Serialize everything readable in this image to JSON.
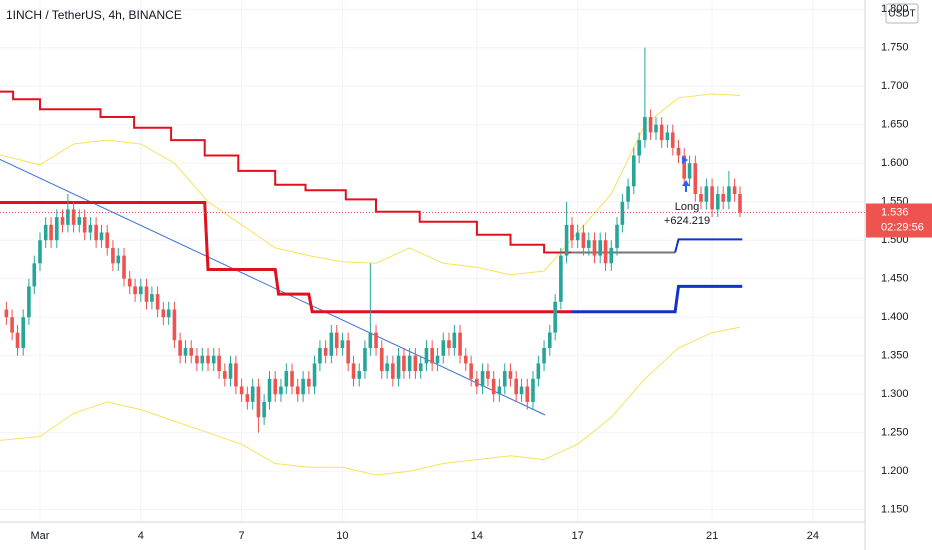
{
  "chart_data": {
    "type": "candlestick",
    "title": "1INCH / TetherUS, 4h, BINANCE",
    "currency": "USDT",
    "up_color": "#26a69a",
    "down_color": "#ef5350",
    "grid": true,
    "xlim": [
      -0.19,
      25.55
    ],
    "xticks": [
      {
        "value": 1,
        "label": "Mar"
      },
      4,
      7,
      10,
      14,
      17,
      21,
      24
    ],
    "ylim": [
      1.134,
      1.812
    ],
    "yticks": [
      {
        "value": 1.15,
        "label": "1.150"
      },
      {
        "value": 1.2,
        "label": "1.200"
      },
      {
        "value": 1.25,
        "label": "1.250"
      },
      {
        "value": 1.3,
        "label": "1.300"
      },
      {
        "value": 1.35,
        "label": "1.350"
      },
      {
        "value": 1.4,
        "label": "1.400"
      },
      {
        "value": 1.45,
        "label": "1.450"
      },
      {
        "value": 1.5,
        "label": "1.500"
      },
      {
        "value": 1.55,
        "label": "1.550"
      },
      {
        "value": 1.6,
        "label": "1.600"
      },
      {
        "value": 1.65,
        "label": "1.650"
      },
      {
        "value": 1.7,
        "label": "1.700"
      },
      {
        "value": 1.75,
        "label": "1.750"
      },
      {
        "value": 1.8,
        "label": "1.800"
      }
    ],
    "x": [
      0,
      0.17,
      0.33,
      0.5,
      0.67,
      0.83,
      1,
      1.17,
      1.33,
      1.5,
      1.67,
      1.83,
      2,
      2.17,
      2.33,
      2.5,
      2.67,
      2.83,
      3,
      3.17,
      3.33,
      3.5,
      3.67,
      3.83,
      4,
      4.17,
      4.33,
      4.5,
      4.67,
      4.83,
      5,
      5.17,
      5.33,
      5.5,
      5.67,
      5.83,
      6,
      6.17,
      6.33,
      6.5,
      6.67,
      6.83,
      7,
      7.17,
      7.33,
      7.5,
      7.67,
      7.83,
      8,
      8.17,
      8.33,
      8.5,
      8.67,
      8.83,
      9,
      9.17,
      9.33,
      9.5,
      9.67,
      9.83,
      10,
      10.17,
      10.33,
      10.5,
      10.67,
      10.83,
      11,
      11.17,
      11.33,
      11.5,
      11.67,
      11.83,
      12,
      12.17,
      12.33,
      12.5,
      12.67,
      12.83,
      13,
      13.17,
      13.33,
      13.5,
      13.67,
      13.83,
      14,
      14.17,
      14.33,
      14.5,
      14.67,
      14.83,
      15,
      15.17,
      15.33,
      15.5,
      15.67,
      15.83,
      16,
      16.17,
      16.33,
      16.5,
      16.67,
      16.83,
      17,
      17.17,
      17.33,
      17.5,
      17.67,
      17.83,
      18,
      18.17,
      18.33,
      18.5,
      18.67,
      18.83,
      19,
      19.17,
      19.33,
      19.5,
      19.67,
      19.83,
      20,
      20.17,
      20.33,
      20.5,
      20.67,
      20.83,
      21,
      21.17,
      21.33,
      21.5,
      21.67,
      21.83
    ],
    "open": [
      1.41,
      1.4,
      1.38,
      1.36,
      1.4,
      1.44,
      1.47,
      1.5,
      1.52,
      1.5,
      1.53,
      1.52,
      1.54,
      1.52,
      1.53,
      1.51,
      1.52,
      1.5,
      1.51,
      1.49,
      1.47,
      1.48,
      1.45,
      1.44,
      1.43,
      1.44,
      1.42,
      1.43,
      1.41,
      1.4,
      1.41,
      1.37,
      1.35,
      1.36,
      1.35,
      1.34,
      1.35,
      1.34,
      1.35,
      1.33,
      1.32,
      1.34,
      1.31,
      1.3,
      1.29,
      1.31,
      1.27,
      1.29,
      1.32,
      1.3,
      1.31,
      1.33,
      1.31,
      1.3,
      1.32,
      1.31,
      1.34,
      1.36,
      1.35,
      1.38,
      1.36,
      1.37,
      1.34,
      1.32,
      1.33,
      1.36,
      1.38,
      1.36,
      1.33,
      1.34,
      1.32,
      1.35,
      1.33,
      1.35,
      1.33,
      1.34,
      1.36,
      1.34,
      1.35,
      1.37,
      1.36,
      1.38,
      1.35,
      1.34,
      1.32,
      1.31,
      1.33,
      1.32,
      1.3,
      1.31,
      1.33,
      1.32,
      1.3,
      1.31,
      1.29,
      1.32,
      1.34,
      1.36,
      1.38,
      1.42,
      1.48,
      1.52,
      1.5,
      1.51,
      1.49,
      1.5,
      1.48,
      1.5,
      1.47,
      1.49,
      1.52,
      1.55,
      1.57,
      1.61,
      1.63,
      1.66,
      1.64,
      1.65,
      1.63,
      1.64,
      1.62,
      1.61,
      1.58,
      1.6,
      1.56,
      1.55,
      1.57,
      1.54,
      1.56,
      1.55,
      1.57,
      1.56
    ],
    "high": [
      1.42,
      1.41,
      1.39,
      1.41,
      1.45,
      1.48,
      1.51,
      1.53,
      1.53,
      1.54,
      1.54,
      1.56,
      1.55,
      1.54,
      1.54,
      1.53,
      1.53,
      1.52,
      1.52,
      1.5,
      1.49,
      1.49,
      1.46,
      1.45,
      1.45,
      1.45,
      1.44,
      1.44,
      1.42,
      1.42,
      1.42,
      1.38,
      1.37,
      1.37,
      1.36,
      1.36,
      1.36,
      1.36,
      1.36,
      1.34,
      1.35,
      1.35,
      1.32,
      1.31,
      1.32,
      1.32,
      1.3,
      1.33,
      1.33,
      1.32,
      1.34,
      1.34,
      1.32,
      1.33,
      1.33,
      1.35,
      1.37,
      1.37,
      1.39,
      1.39,
      1.38,
      1.38,
      1.35,
      1.34,
      1.37,
      1.47,
      1.39,
      1.37,
      1.35,
      1.35,
      1.36,
      1.36,
      1.36,
      1.36,
      1.35,
      1.37,
      1.37,
      1.36,
      1.38,
      1.38,
      1.39,
      1.39,
      1.36,
      1.35,
      1.33,
      1.34,
      1.34,
      1.33,
      1.32,
      1.34,
      1.34,
      1.33,
      1.32,
      1.32,
      1.33,
      1.35,
      1.37,
      1.39,
      1.43,
      1.49,
      1.55,
      1.53,
      1.52,
      1.52,
      1.51,
      1.51,
      1.51,
      1.51,
      1.5,
      1.53,
      1.56,
      1.58,
      1.62,
      1.64,
      1.75,
      1.67,
      1.66,
      1.66,
      1.65,
      1.65,
      1.63,
      1.62,
      1.61,
      1.61,
      1.57,
      1.58,
      1.58,
      1.57,
      1.57,
      1.59,
      1.58,
      1.57
    ],
    "low": [
      1.39,
      1.37,
      1.35,
      1.35,
      1.39,
      1.43,
      1.46,
      1.49,
      1.49,
      1.49,
      1.51,
      1.51,
      1.51,
      1.51,
      1.5,
      1.5,
      1.49,
      1.49,
      1.48,
      1.46,
      1.46,
      1.44,
      1.43,
      1.42,
      1.42,
      1.41,
      1.41,
      1.4,
      1.39,
      1.39,
      1.36,
      1.34,
      1.34,
      1.34,
      1.33,
      1.33,
      1.33,
      1.33,
      1.32,
      1.31,
      1.31,
      1.3,
      1.29,
      1.28,
      1.28,
      1.25,
      1.26,
      1.28,
      1.29,
      1.29,
      1.3,
      1.3,
      1.29,
      1.29,
      1.3,
      1.3,
      1.33,
      1.34,
      1.34,
      1.35,
      1.35,
      1.33,
      1.31,
      1.31,
      1.32,
      1.35,
      1.35,
      1.32,
      1.32,
      1.31,
      1.31,
      1.32,
      1.32,
      1.32,
      1.32,
      1.33,
      1.33,
      1.33,
      1.34,
      1.35,
      1.35,
      1.34,
      1.33,
      1.31,
      1.3,
      1.3,
      1.31,
      1.29,
      1.29,
      1.3,
      1.31,
      1.29,
      1.29,
      1.28,
      1.28,
      1.31,
      1.33,
      1.35,
      1.37,
      1.41,
      1.47,
      1.49,
      1.49,
      1.48,
      1.48,
      1.47,
      1.47,
      1.46,
      1.46,
      1.48,
      1.51,
      1.54,
      1.56,
      1.6,
      1.62,
      1.63,
      1.63,
      1.62,
      1.62,
      1.61,
      1.6,
      1.57,
      1.57,
      1.55,
      1.54,
      1.54,
      1.53,
      1.53,
      1.54,
      1.54,
      1.55,
      1.53
    ],
    "close": [
      1.4,
      1.38,
      1.36,
      1.4,
      1.44,
      1.47,
      1.5,
      1.52,
      1.5,
      1.53,
      1.52,
      1.54,
      1.52,
      1.53,
      1.51,
      1.52,
      1.5,
      1.51,
      1.49,
      1.47,
      1.48,
      1.45,
      1.44,
      1.43,
      1.44,
      1.42,
      1.43,
      1.41,
      1.4,
      1.41,
      1.37,
      1.35,
      1.36,
      1.35,
      1.34,
      1.35,
      1.34,
      1.35,
      1.33,
      1.32,
      1.34,
      1.31,
      1.3,
      1.29,
      1.31,
      1.27,
      1.29,
      1.32,
      1.3,
      1.31,
      1.33,
      1.31,
      1.3,
      1.32,
      1.31,
      1.34,
      1.36,
      1.35,
      1.38,
      1.36,
      1.37,
      1.34,
      1.32,
      1.33,
      1.36,
      1.38,
      1.36,
      1.33,
      1.34,
      1.32,
      1.35,
      1.33,
      1.35,
      1.33,
      1.34,
      1.36,
      1.34,
      1.35,
      1.37,
      1.36,
      1.38,
      1.35,
      1.34,
      1.32,
      1.31,
      1.33,
      1.32,
      1.3,
      1.31,
      1.33,
      1.32,
      1.3,
      1.31,
      1.29,
      1.32,
      1.34,
      1.36,
      1.38,
      1.42,
      1.48,
      1.52,
      1.5,
      1.51,
      1.49,
      1.5,
      1.48,
      1.5,
      1.47,
      1.49,
      1.52,
      1.55,
      1.57,
      1.61,
      1.63,
      1.66,
      1.64,
      1.65,
      1.63,
      1.64,
      1.62,
      1.61,
      1.58,
      1.6,
      1.56,
      1.55,
      1.57,
      1.54,
      1.56,
      1.55,
      1.57,
      1.56,
      1.536
    ],
    "overlays": [
      {
        "color": "#f5e35c",
        "width": 1,
        "x": [
          -0.19,
          1,
          2,
          3,
          4,
          5,
          6,
          7,
          8,
          9,
          10,
          11,
          12,
          13,
          14,
          15,
          16,
          17,
          18,
          19,
          20,
          21,
          21.83
        ],
        "values": [
          1.611,
          1.598,
          1.625,
          1.63,
          1.625,
          1.6,
          1.55,
          1.52,
          1.49,
          1.48,
          1.472,
          1.47,
          1.49,
          1.47,
          1.465,
          1.455,
          1.46,
          1.51,
          1.56,
          1.65,
          1.685,
          1.69,
          1.688
        ]
      },
      {
        "color": "#f5e35c",
        "width": 1,
        "x": [
          -0.19,
          1,
          2,
          3,
          4,
          5,
          6,
          7,
          8,
          9,
          10,
          11,
          12,
          13,
          14,
          15,
          16,
          17,
          18,
          19,
          20,
          21,
          21.83
        ],
        "values": [
          1.24,
          1.245,
          1.275,
          1.29,
          1.28,
          1.265,
          1.25,
          1.235,
          1.21,
          1.205,
          1.205,
          1.195,
          1.2,
          1.21,
          1.215,
          1.22,
          1.215,
          1.235,
          1.27,
          1.32,
          1.36,
          1.38,
          1.387
        ]
      },
      {
        "color": "#3a6fd8",
        "width": 1,
        "x": [
          -0.19,
          16.03
        ],
        "values": [
          1.605,
          1.273
        ]
      },
      {
        "color": "#e0101e",
        "width": 2,
        "x": [
          -0.19,
          0.2,
          0.2,
          1,
          1,
          2.8,
          2.8,
          3.8,
          3.8,
          4.9,
          4.9,
          5.9,
          5.9,
          6.9,
          6.9,
          8,
          8,
          8.9,
          8.9,
          10.1,
          10.1,
          11,
          11,
          12.3,
          12.3,
          14,
          14,
          15,
          15,
          16,
          16,
          16.8
        ],
        "values": [
          1.693,
          1.693,
          1.683,
          1.683,
          1.67,
          1.67,
          1.66,
          1.66,
          1.646,
          1.646,
          1.63,
          1.63,
          1.61,
          1.61,
          1.59,
          1.59,
          1.572,
          1.572,
          1.565,
          1.565,
          1.553,
          1.553,
          1.537,
          1.537,
          1.524,
          1.524,
          1.507,
          1.507,
          1.494,
          1.494,
          1.484,
          1.484
        ]
      },
      {
        "color": "#777777",
        "width": 2,
        "x": [
          16.8,
          19.9
        ],
        "values": [
          1.484,
          1.484
        ]
      },
      {
        "color": "#1133cc",
        "width": 2,
        "x": [
          19.9,
          20,
          21.9
        ],
        "values": [
          1.484,
          1.501,
          1.501
        ]
      },
      {
        "color": "#e0101e",
        "width": 3,
        "x": [
          -0.19,
          5.9,
          6,
          8,
          8.1,
          9,
          9.1,
          16.8
        ],
        "values": [
          1.549,
          1.549,
          1.462,
          1.462,
          1.43,
          1.43,
          1.407,
          1.407
        ]
      },
      {
        "color": "#1133cc",
        "width": 3,
        "x": [
          16.8,
          19.9,
          20,
          21.9
        ],
        "values": [
          1.407,
          1.407,
          1.44,
          1.44
        ]
      }
    ],
    "last_price": 1.536,
    "countdown": "02:29:56",
    "annotations": [
      "Long",
      "+624.219"
    ]
  }
}
